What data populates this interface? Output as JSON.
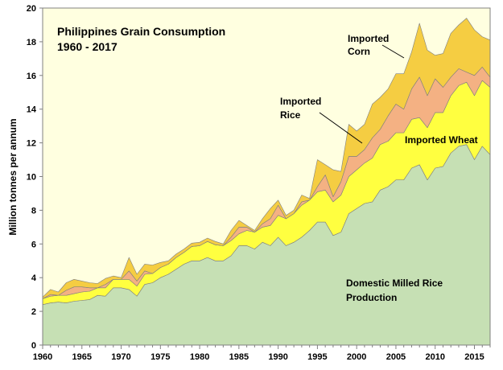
{
  "chart_data": {
    "type": "area",
    "stacked": true,
    "title": "Philippines Grain Consumption",
    "subtitle": "1960 - 2017",
    "ylabel": "Million tonnes per annum",
    "xlabel": "",
    "xlim": [
      1960,
      2017
    ],
    "ylim": [
      0,
      20
    ],
    "grid": false,
    "background": "#ffffe0",
    "x_ticks": [
      "1960",
      "1965",
      "1970",
      "1975",
      "1980",
      "1985",
      "1990",
      "1995",
      "2000",
      "2005",
      "2010",
      "2015"
    ],
    "y_ticks": [
      "0",
      "2",
      "4",
      "6",
      "8",
      "10",
      "12",
      "14",
      "16",
      "18",
      "20"
    ],
    "x": [
      1960,
      1961,
      1962,
      1963,
      1964,
      1965,
      1966,
      1967,
      1968,
      1969,
      1970,
      1971,
      1972,
      1973,
      1974,
      1975,
      1976,
      1977,
      1978,
      1979,
      1980,
      1981,
      1982,
      1983,
      1984,
      1985,
      1986,
      1987,
      1988,
      1989,
      1990,
      1991,
      1992,
      1993,
      1994,
      1995,
      1996,
      1997,
      1998,
      1999,
      2000,
      2001,
      2002,
      2003,
      2004,
      2005,
      2006,
      2007,
      2008,
      2009,
      2010,
      2011,
      2012,
      2013,
      2014,
      2015,
      2016,
      2017
    ],
    "series": [
      {
        "name": "Domestic Milled Rice Production",
        "color": "#c6e0b4",
        "values": [
          2.4,
          2.5,
          2.55,
          2.5,
          2.6,
          2.65,
          2.7,
          2.95,
          2.9,
          3.4,
          3.4,
          3.3,
          2.9,
          3.6,
          3.7,
          4.0,
          4.2,
          4.5,
          4.8,
          5.0,
          5.0,
          5.2,
          5.0,
          5.0,
          5.3,
          5.9,
          5.9,
          5.7,
          6.1,
          5.9,
          6.4,
          5.9,
          6.1,
          6.4,
          6.8,
          7.3,
          7.3,
          6.5,
          6.7,
          7.8,
          8.1,
          8.4,
          8.5,
          9.2,
          9.4,
          9.8,
          9.8,
          10.5,
          10.7,
          9.8,
          10.5,
          10.6,
          11.4,
          11.8,
          11.9,
          11.0,
          11.8,
          11.3
        ]
      },
      {
        "name": "Imported Wheat",
        "color": "#ffff40",
        "values": [
          0.35,
          0.4,
          0.4,
          0.45,
          0.45,
          0.5,
          0.5,
          0.45,
          0.5,
          0.5,
          0.5,
          0.6,
          0.6,
          0.6,
          0.55,
          0.6,
          0.6,
          0.7,
          0.7,
          0.85,
          0.9,
          0.95,
          0.95,
          0.9,
          0.9,
          0.7,
          0.9,
          1.0,
          0.9,
          1.2,
          1.3,
          1.6,
          1.7,
          1.9,
          1.8,
          1.8,
          1.9,
          2.0,
          2.2,
          2.2,
          2.3,
          2.4,
          2.6,
          2.7,
          2.7,
          2.8,
          2.8,
          2.9,
          2.8,
          3.1,
          3.3,
          3.2,
          3.4,
          3.6,
          3.7,
          3.8,
          3.9,
          4.0
        ]
      },
      {
        "name": "Imported Rice",
        "color": "#f4b183",
        "values": [
          0.0,
          0.1,
          0.0,
          0.3,
          0.4,
          0.3,
          0.2,
          0.0,
          0.2,
          0.0,
          0.0,
          0.5,
          0.3,
          0.2,
          0.0,
          0.0,
          0.0,
          0.0,
          0.0,
          0.0,
          0.0,
          0.0,
          0.0,
          0.0,
          0.2,
          0.4,
          0.2,
          0.0,
          0.2,
          0.4,
          0.6,
          0.0,
          0.0,
          0.2,
          0.0,
          0.3,
          0.9,
          0.3,
          0.8,
          1.2,
          0.8,
          0.8,
          1.2,
          0.9,
          1.5,
          1.7,
          1.4,
          1.8,
          2.4,
          1.9,
          2.0,
          1.5,
          1.1,
          1.0,
          0.6,
          1.2,
          0.8,
          0.6
        ]
      },
      {
        "name": "Imported Corn",
        "color": "#f5cd42",
        "values": [
          0.1,
          0.3,
          0.2,
          0.45,
          0.45,
          0.35,
          0.3,
          0.25,
          0.35,
          0.2,
          0.1,
          0.8,
          0.4,
          0.4,
          0.5,
          0.3,
          0.2,
          0.2,
          0.2,
          0.2,
          0.2,
          0.2,
          0.2,
          0.1,
          0.4,
          0.4,
          0.1,
          0.1,
          0.3,
          0.6,
          0.3,
          0.2,
          0.2,
          0.4,
          0.1,
          1.6,
          0.6,
          1.6,
          0.6,
          1.9,
          1.5,
          1.5,
          2.0,
          1.9,
          1.6,
          1.8,
          2.1,
          2.2,
          3.2,
          2.7,
          1.4,
          2.0,
          2.6,
          2.6,
          3.2,
          2.7,
          1.8,
          2.2
        ]
      }
    ],
    "annotations": [
      {
        "text": "Philippines Grain Consumption"
      },
      {
        "text": "1960 - 2017"
      },
      {
        "text": "Imported Corn"
      },
      {
        "text": "Imported Rice"
      },
      {
        "text": "Imported Wheat"
      },
      {
        "text": "Domestic Milled Rice Production"
      }
    ],
    "labels": {
      "corn_1": "Imported",
      "corn_2": "Corn",
      "rice_1": "Imported",
      "rice_2": "Rice",
      "wheat": "Imported  Wheat",
      "domestic_1": "Domestic Milled Rice",
      "domestic_2": "Production"
    }
  }
}
